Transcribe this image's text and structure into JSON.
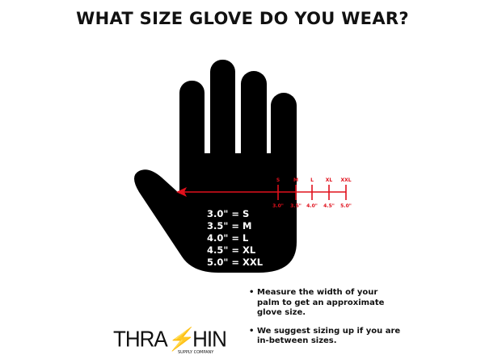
{
  "title": "WHAT SIZE GLOVE DO YOU WEAR?",
  "scale": {
    "sizes": [
      "S",
      "M",
      "L",
      "XL",
      "XXL"
    ],
    "measurements": [
      "3.0\"",
      "3.5\"",
      "4.0\"",
      "4.5\"",
      "5.0\""
    ],
    "color": "#e0101c"
  },
  "size_chart": [
    "3.0\" = S",
    "3.5\" = M",
    "4.0\" = L",
    "4.5\" = XL",
    "5.0\" = XXL"
  ],
  "tips": [
    "Measure the width of your palm to get an approximate glove size.",
    "We suggest sizing up if you are in-between sizes."
  ],
  "logo": {
    "name": "THRASHIN",
    "sub": "SUPPLY COMPANY"
  }
}
